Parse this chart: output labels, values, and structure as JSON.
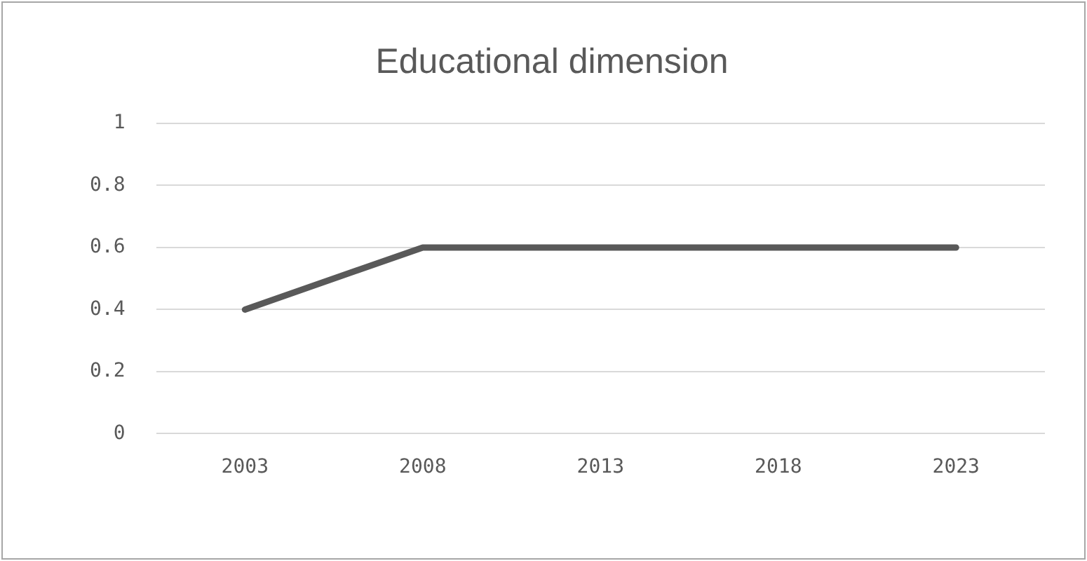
{
  "chart_data": {
    "type": "line",
    "title": "Educational dimension",
    "categories": [
      "2003",
      "2008",
      "2013",
      "2018",
      "2023"
    ],
    "series": [
      {
        "color": "#595959",
        "values": [
          0.4,
          0.6,
          0.6,
          0.6,
          0.6
        ]
      }
    ],
    "ylim": [
      0,
      1
    ],
    "yticks": [
      0,
      0.2,
      0.4,
      0.6,
      0.8,
      1
    ],
    "grid": "y",
    "legend": false,
    "marker": "none",
    "line_style": "solid"
  }
}
